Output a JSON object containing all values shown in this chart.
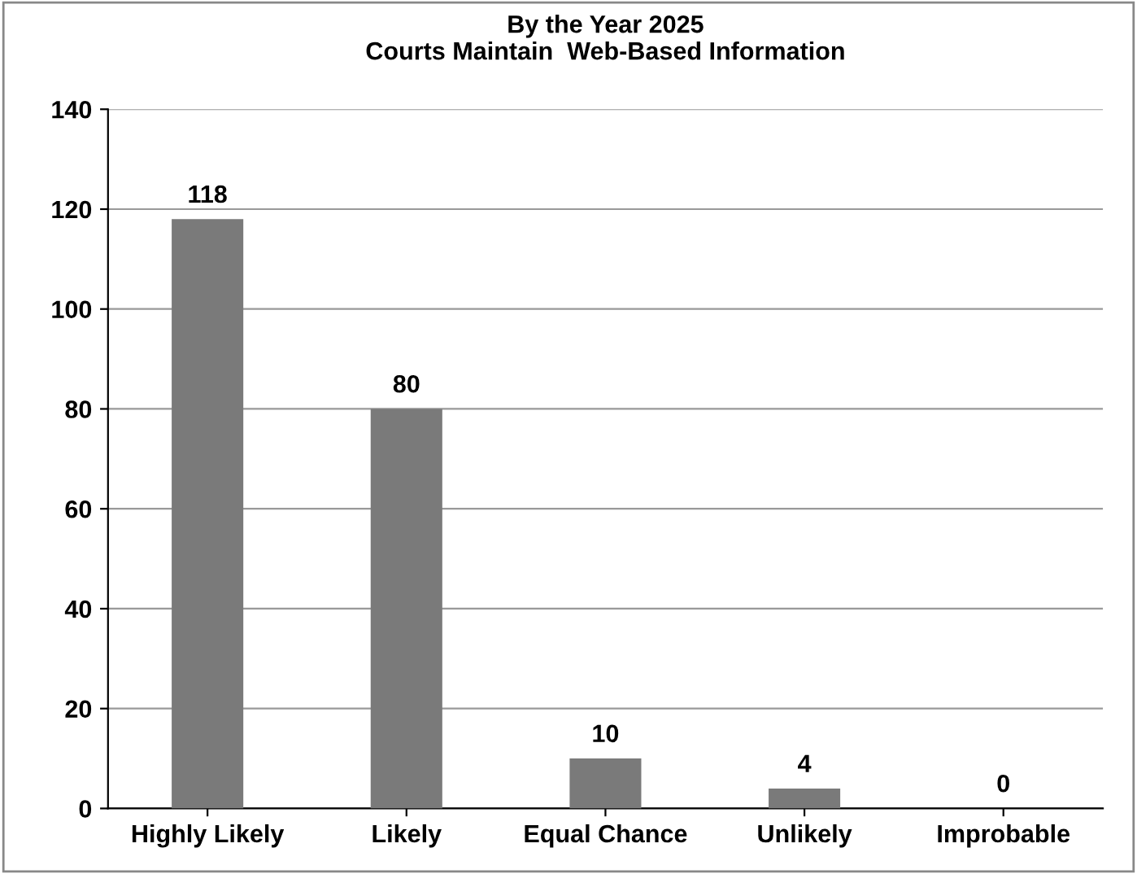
{
  "chart_data": {
    "type": "bar",
    "title": "By the Year 2025\nCourts Maintain  Web-Based Information",
    "categories": [
      "Highly Likely",
      "Likely",
      "Equal Chance",
      "Unlikely",
      "Improbable"
    ],
    "values": [
      118,
      80,
      10,
      4,
      0
    ],
    "color": "#7a7a7a",
    "ylim": [
      0,
      140
    ],
    "yticks": [
      0,
      20,
      40,
      60,
      80,
      100,
      120,
      140
    ],
    "grid": "y",
    "data_labels": true
  }
}
